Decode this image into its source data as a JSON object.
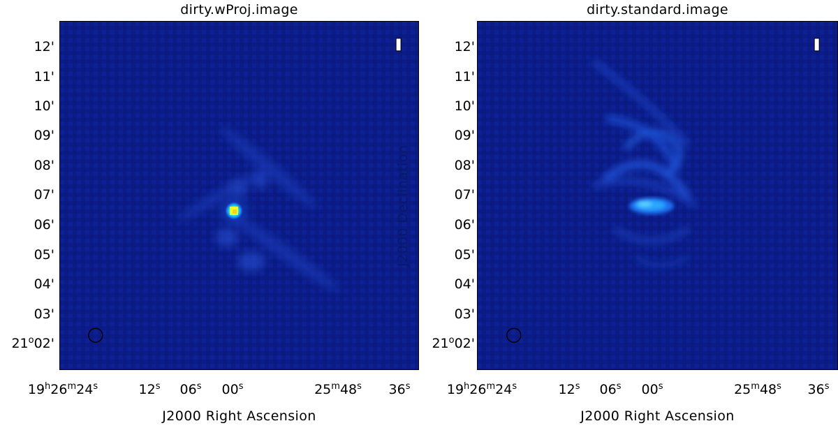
{
  "panels": [
    {
      "title": "dirty.wProj.image",
      "x_label": "J2000 Right Ascension",
      "y_label": "",
      "y_ticks": [
        "12'",
        "11'",
        "10'",
        "09'",
        "08'",
        "07'",
        "06'",
        "05'",
        "04'",
        "03'"
      ],
      "y_tick_bottom": {
        "deg": "21",
        "min": "02'"
      },
      "x_ticks": [
        {
          "base": "19",
          "h": "h",
          "mid": "26",
          "m": "m",
          "tail": "24",
          "s": "s"
        },
        {
          "base": "12",
          "s": "s"
        },
        {
          "base": "06",
          "s": "s"
        },
        {
          "base": "00",
          "s": "s"
        },
        {
          "base": "25",
          "m": "m",
          "tail": "48",
          "s": "s"
        },
        {
          "base": "36",
          "s": "s"
        }
      ],
      "polarization": "I",
      "colors": {
        "background": "#0c1e8c",
        "core": "#e6ff2a"
      }
    },
    {
      "title": "dirty.standard.image",
      "x_label": "J2000 Right Ascension",
      "y_label": "J2000 Declination",
      "y_ticks": [
        "12'",
        "11'",
        "10'",
        "09'",
        "08'",
        "07'",
        "06'",
        "05'",
        "04'",
        "03'"
      ],
      "y_tick_bottom": {
        "deg": "21",
        "min": "02'"
      },
      "x_ticks": [
        {
          "base": "19",
          "h": "h",
          "mid": "26",
          "m": "m",
          "tail": "24",
          "s": "s"
        },
        {
          "base": "12",
          "s": "s"
        },
        {
          "base": "06",
          "s": "s"
        },
        {
          "base": "00",
          "s": "s"
        },
        {
          "base": "25",
          "m": "m",
          "tail": "48",
          "s": "s"
        },
        {
          "base": "36",
          "s": "s"
        }
      ],
      "polarization": "I",
      "colors": {
        "background": "#0c1e8c",
        "core": "#2aa8ff"
      }
    }
  ]
}
